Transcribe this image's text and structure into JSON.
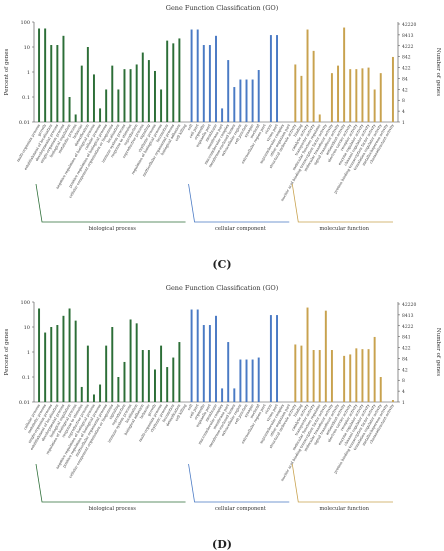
{
  "panels": [
    {
      "label": "(C)",
      "chart_data": {
        "type": "bar",
        "title": "Gene Function Classification (GO)",
        "ylabel_left": "Percent of genes",
        "ylabel_right": "Number of genes",
        "y_scale": "log",
        "ylim": [
          0.01,
          100
        ],
        "left_ticks": [
          "100",
          "10",
          "1",
          "0.1",
          "0.01"
        ],
        "right_ticks": [
          "42220",
          "8413",
          "4222",
          "842",
          "422",
          "84",
          "42",
          "8",
          "4",
          "1"
        ],
        "groups": [
          {
            "name": "biological process",
            "color": "#2c6e37",
            "categories": [
              "multi-organism process",
              "growth",
              "establishment of localization",
              "developmental process",
              "single-organism process",
              "biological regulation",
              "metabolic process",
              "behavior",
              "detoxification",
              "negative regulation of biological process",
              "cellular process",
              "positive regulation of biological process",
              "cellular component organization or biogenesis",
              "localization",
              "immune system process",
              "response to stimulus",
              "reproduction",
              "reproductive process",
              "signaling",
              "rhythmic process",
              "regulation of biological process",
              "locomotion",
              "multicellular organismal process",
              "biological adhesion",
              "cell killing"
            ],
            "values": [
              55,
              55,
              12,
              12,
              28,
              0.1,
              0.02,
              1.8,
              10,
              0.8,
              0.035,
              0.2,
              1.8,
              0.2,
              1.3,
              1.3,
              2,
              6,
              3,
              1.1,
              0.2,
              18,
              14,
              22,
              0.01
            ]
          },
          {
            "name": "cellular component",
            "color": "#4a7ac4",
            "categories": [
              "cell",
              "cell part",
              "organelle",
              "organelle part",
              "membrane",
              "membrane part",
              "macromolecular complex",
              "membrane-enclosed lumen",
              "extracellular region",
              "cell junction",
              "synapse",
              "nucleoid",
              "extracellular region part",
              "virion",
              "virion part",
              "supramolecular complex",
              "other organism part"
            ],
            "values": [
              50,
              50,
              12,
              12,
              28,
              0.035,
              3,
              0.25,
              0.5,
              0.5,
              0.5,
              1.2,
              0.01,
              30,
              30,
              0.01,
              0.01
            ]
          },
          {
            "name": "molecular function",
            "color": "#c8a24e",
            "categories": [
              "structural molecule activity",
              "binding",
              "catalytic activity",
              "transporter activity",
              "molecular function regulator",
              "nucleic acid binding transcription factor activity",
              "molecular transducer activity",
              "signal transducer activity",
              "antioxidant activity",
              "electron carrier activity",
              "receptor activity",
              "enzyme regulator activity",
              "channel regulator activity",
              "protein binding transcription factor activity",
              "translation regulator activity",
              "metallochaperone activity",
              "chemoattractant activity"
            ],
            "values": [
              2,
              0.7,
              50,
              7,
              0.02,
              0.01,
              0.9,
              1.8,
              60,
              1.3,
              1.3,
              1.4,
              1.5,
              0.2,
              0.9,
              0.01,
              4
            ]
          }
        ]
      }
    },
    {
      "label": "(D)",
      "chart_data": {
        "type": "bar",
        "title": "Gene Function Classification (GO)",
        "ylabel_left": "Percent of genes",
        "ylabel_right": "Number of genes",
        "y_scale": "log",
        "ylim": [
          0.01,
          100
        ],
        "left_ticks": [
          "100",
          "10",
          "1",
          "0.1",
          "0.01"
        ],
        "right_ticks": [
          "42220",
          "8413",
          "4222",
          "841",
          "422",
          "84",
          "42",
          "8",
          "4",
          "1"
        ],
        "groups": [
          {
            "name": "biological process",
            "color": "#2c6e37",
            "categories": [
              "cellular process",
              "metabolic process",
              "single-organism process",
              "establishment of localization",
              "developmental process",
              "biological regulation",
              "regulation of biological process",
              "response to stimulus",
              "reproductive process",
              "negative regulation of biological process",
              "positive regulation of biological process",
              "multicellular organismal process",
              "cellular component organization or biogenesis",
              "signaling",
              "reproduction",
              "immune system process",
              "localization",
              "biological adhesion",
              "behavior",
              "growth",
              "multi-organism process",
              "rhythmic process",
              "locomotion",
              "detoxification",
              "cell killing"
            ],
            "values": [
              55,
              6,
              10,
              12,
              28,
              55,
              18,
              0.04,
              1.8,
              0.02,
              0.05,
              1.8,
              10,
              0.1,
              0.4,
              20,
              14,
              1.2,
              1.2,
              0.2,
              1.8,
              0.25,
              0.6,
              2.5,
              0.01
            ]
          },
          {
            "name": "cellular component",
            "color": "#4a7ac4",
            "categories": [
              "cell",
              "cell part",
              "organelle",
              "organelle part",
              "membrane",
              "macromolecular complex",
              "membrane part",
              "membrane-enclosed lumen",
              "extracellular region",
              "cell junction",
              "synapse",
              "nucleoid",
              "extracellular region part",
              "virion",
              "virion part",
              "supramolecular complex",
              "other organism part"
            ],
            "values": [
              50,
              50,
              12,
              12,
              28,
              0.035,
              2.5,
              0.035,
              0.5,
              0.5,
              0.5,
              0.6,
              0.01,
              30,
              30,
              0.01,
              0.01
            ]
          },
          {
            "name": "molecular function",
            "color": "#c8a24e",
            "categories": [
              "structural molecule activity",
              "binding",
              "catalytic activity",
              "transporter activity",
              "molecular function regulator",
              "nucleic acid binding transcription factor activity",
              "molecular transducer activity",
              "signal transducer activity",
              "antioxidant activity",
              "electron carrier activity",
              "receptor activity",
              "enzyme regulator activity",
              "channel regulator activity",
              "protein binding transcription factor activity",
              "translation regulator activity",
              "metallochaperone activity",
              "chemoattractant activity"
            ],
            "values": [
              2,
              1.8,
              60,
              1.2,
              1.2,
              45,
              1.2,
              0.01,
              0.7,
              0.8,
              1.4,
              1.3,
              1.3,
              4,
              0.1,
              0.01,
              0.012
            ]
          }
        ]
      }
    }
  ]
}
